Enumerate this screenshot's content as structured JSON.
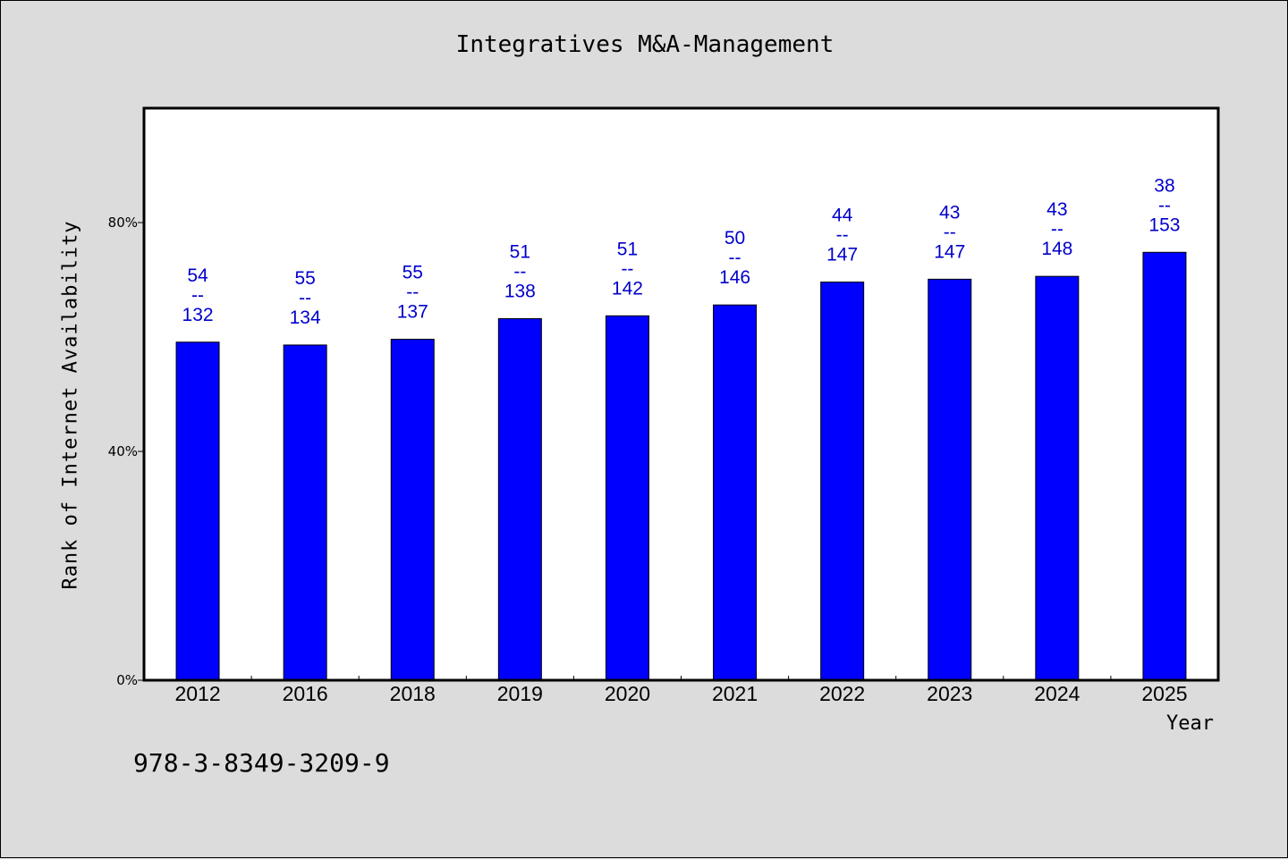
{
  "chart_data": {
    "type": "bar",
    "title": "Integratives M&A-Management",
    "xlabel": "Year",
    "ylabel": "Rank of Internet Availability",
    "categories": [
      "2012",
      "2016",
      "2018",
      "2019",
      "2020",
      "2021",
      "2022",
      "2023",
      "2024",
      "2025"
    ],
    "values": [
      59.1,
      58.6,
      59.6,
      63.2,
      63.7,
      65.6,
      69.6,
      70.1,
      70.6,
      74.8
    ],
    "value_unit": "%",
    "ylim": [
      0,
      100
    ],
    "yticks": [
      0,
      40,
      80
    ],
    "ytick_labels": [
      "0%",
      "40%",
      "80%"
    ],
    "bar_labels": [
      {
        "top": "54",
        "sep": "--",
        "bottom": "132"
      },
      {
        "top": "55",
        "sep": "--",
        "bottom": "134"
      },
      {
        "top": "55",
        "sep": "--",
        "bottom": "137"
      },
      {
        "top": "51",
        "sep": "--",
        "bottom": "138"
      },
      {
        "top": "51",
        "sep": "--",
        "bottom": "142"
      },
      {
        "top": "50",
        "sep": "--",
        "bottom": "146"
      },
      {
        "top": "44",
        "sep": "--",
        "bottom": "147"
      },
      {
        "top": "43",
        "sep": "--",
        "bottom": "147"
      },
      {
        "top": "43",
        "sep": "--",
        "bottom": "148"
      },
      {
        "top": "38",
        "sep": "--",
        "bottom": "153"
      }
    ],
    "bar_color": "#0000ff",
    "label_color": "#0000cc",
    "background_color": "#dcdcdc",
    "plot_background_color": "#ffffff",
    "grid": false,
    "legend": "none"
  },
  "footnote": "978-3-8349-3209-9"
}
